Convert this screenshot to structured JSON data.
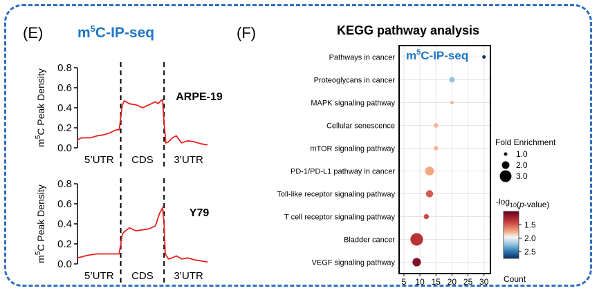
{
  "panel_e": {
    "letter": "(E)",
    "title_prefix": "m",
    "title_sup": "5",
    "title_suffix": "C-IP-seq",
    "ylabel_prefix": "m",
    "ylabel_sup": "5",
    "ylabel_suffix": "C Peak Density",
    "region_labels": [
      "5’UTR",
      "CDS",
      "3’UTR"
    ],
    "line_color": "#e8201c"
  },
  "panel_f": {
    "letter": "(F)",
    "title": "KEGG pathway analysis",
    "inset_prefix": "m",
    "inset_sup": "5",
    "inset_suffix": "C-IP-seq",
    "size_legend_title": "Fold Enrichment",
    "size_legend_values": [
      "1.0",
      "2.0",
      "3.0"
    ],
    "color_legend_title_prefix": "-log",
    "color_legend_title_sub": "10",
    "color_legend_title_suffix": "(p-value)",
    "color_legend_ticks": [
      "1.5",
      "2.0",
      "2.5"
    ]
  },
  "chart_data": [
    {
      "type": "line",
      "title": "ARPE-19",
      "ylabel": "m5C Peak Density",
      "ylim": [
        0,
        0.8
      ],
      "yticks": [
        "0.0",
        "0.2",
        "0.4",
        "0.6",
        "0.8"
      ],
      "x": [
        0,
        0.03,
        0.06,
        0.1,
        0.15,
        0.2,
        0.25,
        0.28,
        0.3,
        0.32,
        0.333,
        0.345,
        0.36,
        0.4,
        0.45,
        0.5,
        0.55,
        0.6,
        0.62,
        0.64,
        0.655,
        0.666,
        0.68,
        0.7,
        0.73,
        0.76,
        0.8,
        0.85,
        0.9,
        0.95,
        1.0
      ],
      "values": [
        0.08,
        0.1,
        0.1,
        0.1,
        0.12,
        0.13,
        0.15,
        0.17,
        0.18,
        0.18,
        0.3,
        0.43,
        0.47,
        0.44,
        0.43,
        0.4,
        0.43,
        0.46,
        0.44,
        0.47,
        0.48,
        0.25,
        0.05,
        0.06,
        0.1,
        0.12,
        0.05,
        0.07,
        0.06,
        0.04,
        0.03
      ],
      "line_color": "#e8201c",
      "boundaries": [
        0.333,
        0.666
      ],
      "regions": [
        "5’UTR",
        "CDS",
        "3’UTR"
      ],
      "grid": false
    },
    {
      "type": "line",
      "title": "Y79",
      "ylabel": "m5C Peak Density",
      "ylim": [
        0,
        0.8
      ],
      "yticks": [
        "0.0",
        "0.2",
        "0.4",
        "0.6",
        "0.8"
      ],
      "x": [
        0,
        0.03,
        0.06,
        0.1,
        0.15,
        0.2,
        0.25,
        0.3,
        0.32,
        0.333,
        0.345,
        0.36,
        0.4,
        0.45,
        0.5,
        0.55,
        0.6,
        0.63,
        0.655,
        0.666,
        0.675,
        0.7,
        0.73,
        0.76,
        0.8,
        0.85,
        0.9,
        0.95,
        1.0
      ],
      "values": [
        0.06,
        0.07,
        0.08,
        0.09,
        0.1,
        0.1,
        0.1,
        0.1,
        0.1,
        0.2,
        0.3,
        0.32,
        0.36,
        0.33,
        0.34,
        0.35,
        0.38,
        0.5,
        0.56,
        0.4,
        0.1,
        0.05,
        0.06,
        0.08,
        0.05,
        0.06,
        0.04,
        0.03,
        0.02
      ],
      "line_color": "#e8201c",
      "boundaries": [
        0.333,
        0.666
      ],
      "regions": [
        "5’UTR",
        "CDS",
        "3’UTR"
      ],
      "grid": false
    },
    {
      "type": "scatter",
      "title": "KEGG pathway analysis",
      "xlabel": "Count",
      "xlim": [
        3.5,
        32
      ],
      "xticks": [
        5,
        10,
        15,
        20,
        25,
        30
      ],
      "grid": true,
      "categories": [
        "Pathways in cancer",
        "Proteoglycans in cancer",
        "MAPK signaling pathway",
        "Cellular senescence",
        "mTOR signaling pathway",
        "PD-1/PD-L1  pathway in cancer",
        "Toll-like receptor signaling pathway",
        "T cell receptor signaling pathway",
        "Bladder cancer",
        "VEGF signaling pathway"
      ],
      "count": [
        30,
        20,
        20,
        15,
        15,
        13,
        13,
        12,
        9,
        9
      ],
      "fold_enrichment": [
        1.0,
        1.5,
        1.0,
        1.3,
        1.3,
        2.3,
        1.9,
        1.4,
        3.2,
        2.2
      ],
      "neg_log10_p": [
        2.8,
        2.2,
        1.75,
        1.75,
        1.75,
        1.7,
        1.45,
        1.4,
        1.3,
        1.1
      ],
      "size_legend": [
        1.0,
        2.0,
        3.0
      ],
      "color_range": [
        2.75,
        1.0
      ],
      "color_ticks": [
        1.5,
        2.0,
        2.5
      ]
    }
  ]
}
